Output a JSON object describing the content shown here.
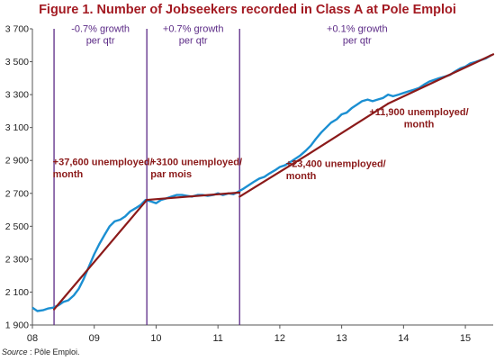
{
  "title": "Figure 1. Number of Jobseekers recorded in Class A at Pole Emploi",
  "source_label": "Source",
  "source_text": " : Pôle Emploi.",
  "chart_data": {
    "type": "line",
    "title": "Figure 1. Number of Jobseekers recorded in Class A at Pole Emploi",
    "xlabel": "",
    "ylabel": "",
    "ylim": [
      1900,
      3700
    ],
    "xlim": [
      2008.0,
      2015.45
    ],
    "x_ticks": [
      2008,
      2009,
      2010,
      2011,
      2012,
      2013,
      2014,
      2015
    ],
    "x_tick_labels": [
      "08",
      "09",
      "10",
      "11",
      "12",
      "13",
      "14",
      "15"
    ],
    "y_ticks": [
      1900,
      2100,
      2300,
      2500,
      2700,
      2900,
      3100,
      3300,
      3500,
      3700
    ],
    "y_tick_labels": [
      "1 900",
      "2 100",
      "2 300",
      "2 500",
      "2 700",
      "2 900",
      "3 100",
      "3 300",
      "3 500",
      "3 700"
    ],
    "grid": false,
    "colors": {
      "series": "#1b8fd2",
      "trend": "#8b1a1a",
      "divider": "#5b2a86",
      "growth_text": "#5b2a86",
      "annotation_text": "#8b1a1a",
      "title": "#a31a22"
    },
    "series": [
      {
        "x": [
          2008.0,
          2008.08,
          2008.17,
          2008.25,
          2008.33,
          2008.42,
          2008.5,
          2008.58,
          2008.67,
          2008.75,
          2008.83,
          2008.92,
          2009.0,
          2009.08,
          2009.17,
          2009.25,
          2009.33,
          2009.42,
          2009.5,
          2009.58,
          2009.67,
          2009.75,
          2009.83,
          2009.92,
          2010.0,
          2010.08,
          2010.17,
          2010.25,
          2010.33,
          2010.42,
          2010.5,
          2010.58,
          2010.67,
          2010.75,
          2010.83,
          2010.92,
          2011.0,
          2011.08,
          2011.17,
          2011.25,
          2011.33,
          2011.42,
          2011.5,
          2011.58,
          2011.67,
          2011.75,
          2011.83,
          2011.92,
          2012.0,
          2012.08,
          2012.17,
          2012.25,
          2012.33,
          2012.42,
          2012.5,
          2012.58,
          2012.67,
          2012.75,
          2012.83,
          2012.92,
          2013.0,
          2013.08,
          2013.17,
          2013.25,
          2013.33,
          2013.42,
          2013.5,
          2013.58,
          2013.67,
          2013.75,
          2013.83,
          2013.92,
          2014.0,
          2014.08,
          2014.17,
          2014.25,
          2014.33,
          2014.42,
          2014.5,
          2014.58,
          2014.67,
          2014.75,
          2014.83,
          2014.92,
          2015.0,
          2015.08,
          2015.17,
          2015.25,
          2015.33,
          2015.42
        ],
        "values": [
          2005,
          1985,
          1990,
          2000,
          2005,
          2020,
          2040,
          2050,
          2080,
          2120,
          2180,
          2260,
          2330,
          2390,
          2450,
          2500,
          2530,
          2540,
          2560,
          2590,
          2610,
          2630,
          2660,
          2650,
          2640,
          2660,
          2670,
          2680,
          2690,
          2690,
          2685,
          2680,
          2690,
          2690,
          2685,
          2690,
          2700,
          2690,
          2700,
          2695,
          2710,
          2730,
          2750,
          2770,
          2790,
          2800,
          2820,
          2840,
          2860,
          2870,
          2890,
          2910,
          2930,
          2960,
          2990,
          3030,
          3070,
          3100,
          3130,
          3150,
          3180,
          3190,
          3220,
          3240,
          3260,
          3270,
          3260,
          3270,
          3280,
          3300,
          3290,
          3300,
          3310,
          3320,
          3330,
          3340,
          3360,
          3380,
          3390,
          3400,
          3410,
          3420,
          3440,
          3460,
          3470,
          3490,
          3500,
          3510,
          3520,
          3540
        ]
      }
    ],
    "trend_lines": [
      {
        "x": [
          2008.35,
          2009.85
        ],
        "values": [
          1995,
          2660
        ]
      },
      {
        "x": [
          2009.85,
          2011.35
        ],
        "values": [
          2660,
          2705
        ]
      },
      {
        "x": [
          2011.35,
          2012.45
        ],
        "values": [
          2680,
          2935
        ]
      },
      {
        "x": [
          2012.45,
          2013.75
        ],
        "values": [
          2935,
          3245
        ]
      },
      {
        "x": [
          2013.75,
          2015.45
        ],
        "values": [
          3245,
          3545
        ]
      }
    ],
    "dividers": [
      2008.35,
      2009.85,
      2011.35
    ],
    "growth_labels": [
      {
        "text": "-0.7% growth\nper qtr",
        "x": 2009.1,
        "y": 3680
      },
      {
        "text": "+0.7% growth\nper qtr",
        "x": 2010.6,
        "y": 3680
      },
      {
        "text": "+0.1% growth\nper qtr",
        "x": 2013.25,
        "y": 3680
      }
    ],
    "annotations": [
      {
        "text": "+37,600 unemployed/\nmonth",
        "x": 2008.33,
        "y": 2870,
        "anchor": "start"
      },
      {
        "text": "+3100 unemployed/\npar mois",
        "x": 2009.91,
        "y": 2870,
        "anchor": "start"
      },
      {
        "text": "+23,400 unemployed/\nmonth",
        "x": 2012.1,
        "y": 2860,
        "anchor": "start"
      },
      {
        "text": "+11,900 unemployed/\nmonth",
        "x": 2014.25,
        "y": 3175,
        "anchor": "middle"
      }
    ]
  }
}
